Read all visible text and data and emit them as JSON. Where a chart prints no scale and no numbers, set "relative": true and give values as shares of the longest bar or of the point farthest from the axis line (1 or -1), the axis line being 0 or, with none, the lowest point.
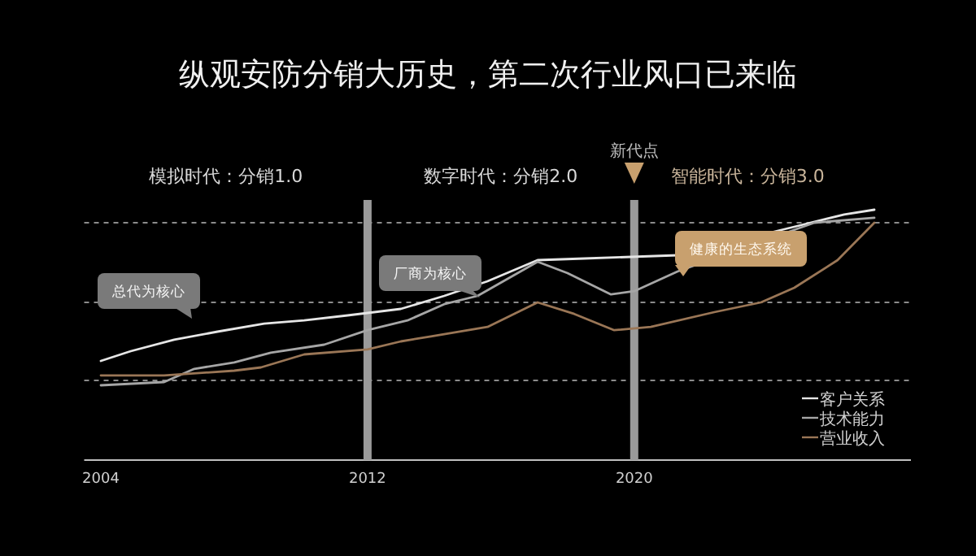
{
  "chart_data": {
    "type": "line",
    "title": "纵观安防分销大历史，第二次行业风口已来临",
    "relative": true,
    "xlim": [
      2003.5,
      2028.3
    ],
    "xticks": [
      2004,
      2012,
      2020
    ],
    "legend": "bottom right",
    "marker": "none",
    "line_style": "solid",
    "series": [
      {
        "name": "客户关系",
        "color": "#e6e6e6",
        "x": [
          2004.0,
          2004.9,
          2006.2,
          2007.5,
          2008.9,
          2010.1,
          2011.4,
          2013.0,
          2014.3,
          2015.6,
          2017.1,
          2018.5,
          2021.3,
          2024.9,
          2026.3,
          2027.2
        ],
        "values": [
          0.396,
          0.435,
          0.481,
          0.513,
          0.545,
          0.558,
          0.578,
          0.604,
          0.656,
          0.714,
          0.799,
          0.805,
          0.818,
          0.935,
          0.981,
          1.0
        ]
      },
      {
        "name": "技术能力",
        "color": "#a6a6a6",
        "x": [
          2004.0,
          2005.9,
          2006.8,
          2008.0,
          2009.1,
          2010.7,
          2012.0,
          2013.2,
          2014.3,
          2015.3,
          2017.1,
          2018.0,
          2019.3,
          2020.0,
          2021.3,
          2025.4,
          2027.2
        ],
        "values": [
          0.299,
          0.312,
          0.364,
          0.39,
          0.429,
          0.461,
          0.519,
          0.558,
          0.623,
          0.656,
          0.792,
          0.747,
          0.662,
          0.675,
          0.753,
          0.948,
          0.968
        ]
      },
      {
        "name": "营业收入",
        "color": "#9a7656",
        "x": [
          2004.0,
          2005.9,
          2008.0,
          2008.8,
          2010.1,
          2012.0,
          2013.0,
          2013.9,
          2015.6,
          2017.1,
          2018.2,
          2019.4,
          2020.5,
          2022.4,
          2023.8,
          2024.8,
          2026.1,
          2027.2
        ],
        "values": [
          0.338,
          0.338,
          0.357,
          0.37,
          0.422,
          0.442,
          0.474,
          0.494,
          0.532,
          0.63,
          0.584,
          0.519,
          0.532,
          0.591,
          0.63,
          0.688,
          0.799,
          0.948
        ]
      }
    ],
    "ref_lines": [
      {
        "axis": "y",
        "value": 0.948,
        "line_style": "dashed",
        "color": "#8c8c8c"
      },
      {
        "axis": "y",
        "value": 0.63,
        "line_style": "dashed",
        "color": "#8c8c8c"
      },
      {
        "axis": "y",
        "value": 0.318,
        "line_style": "dashed",
        "color": "#8c8c8c"
      },
      {
        "axis": "x",
        "value": 2012,
        "color": "#9a9a9a"
      },
      {
        "axis": "x",
        "value": 2020,
        "label": "新代点",
        "color": "#9a9a9a"
      }
    ],
    "annotations": [
      "模拟时代：分销1.0",
      "数字时代：分销2.0",
      "智能时代：分销3.0",
      "总代为核心",
      "厂商为核心",
      "健康的生态系统"
    ]
  }
}
